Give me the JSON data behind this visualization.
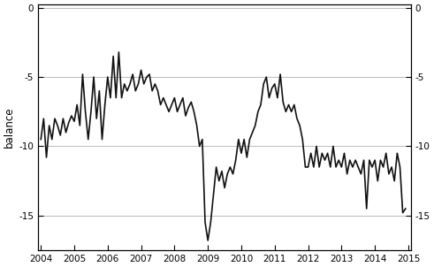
{
  "ylabel": "balance",
  "xlim_start": 2003.92,
  "xlim_end": 2015.08,
  "ylim_bottom": -17.5,
  "ylim_top": 0.25,
  "yticks": [
    0,
    -5,
    -10,
    -15
  ],
  "xticks": [
    2004,
    2005,
    2006,
    2007,
    2008,
    2009,
    2010,
    2011,
    2012,
    2013,
    2014,
    2015
  ],
  "line_color": "#111111",
  "line_width": 1.2,
  "grid_color": "#b0b0b0",
  "background_color": "#ffffff",
  "time_series": [
    [
      2004.0,
      -9.5
    ],
    [
      2004.083,
      -8.0
    ],
    [
      2004.167,
      -10.8
    ],
    [
      2004.25,
      -8.5
    ],
    [
      2004.333,
      -9.5
    ],
    [
      2004.417,
      -8.0
    ],
    [
      2004.5,
      -8.5
    ],
    [
      2004.583,
      -9.2
    ],
    [
      2004.667,
      -8.0
    ],
    [
      2004.75,
      -9.0
    ],
    [
      2004.833,
      -8.3
    ],
    [
      2004.917,
      -7.8
    ],
    [
      2005.0,
      -8.2
    ],
    [
      2005.083,
      -7.0
    ],
    [
      2005.167,
      -8.5
    ],
    [
      2005.25,
      -4.8
    ],
    [
      2005.333,
      -7.5
    ],
    [
      2005.417,
      -9.5
    ],
    [
      2005.5,
      -7.5
    ],
    [
      2005.583,
      -5.0
    ],
    [
      2005.667,
      -8.0
    ],
    [
      2005.75,
      -6.0
    ],
    [
      2005.833,
      -9.5
    ],
    [
      2005.917,
      -7.0
    ],
    [
      2006.0,
      -5.0
    ],
    [
      2006.083,
      -6.5
    ],
    [
      2006.167,
      -3.5
    ],
    [
      2006.25,
      -6.5
    ],
    [
      2006.333,
      -3.2
    ],
    [
      2006.417,
      -6.5
    ],
    [
      2006.5,
      -5.5
    ],
    [
      2006.583,
      -6.0
    ],
    [
      2006.667,
      -5.5
    ],
    [
      2006.75,
      -4.8
    ],
    [
      2006.833,
      -6.0
    ],
    [
      2006.917,
      -5.5
    ],
    [
      2007.0,
      -4.5
    ],
    [
      2007.083,
      -5.5
    ],
    [
      2007.167,
      -5.0
    ],
    [
      2007.25,
      -4.8
    ],
    [
      2007.333,
      -6.0
    ],
    [
      2007.417,
      -5.5
    ],
    [
      2007.5,
      -6.0
    ],
    [
      2007.583,
      -7.0
    ],
    [
      2007.667,
      -6.5
    ],
    [
      2007.75,
      -7.0
    ],
    [
      2007.833,
      -7.5
    ],
    [
      2007.917,
      -7.0
    ],
    [
      2008.0,
      -6.5
    ],
    [
      2008.083,
      -7.5
    ],
    [
      2008.167,
      -7.0
    ],
    [
      2008.25,
      -6.5
    ],
    [
      2008.333,
      -7.8
    ],
    [
      2008.417,
      -7.2
    ],
    [
      2008.5,
      -6.8
    ],
    [
      2008.583,
      -7.5
    ],
    [
      2008.667,
      -8.5
    ],
    [
      2008.75,
      -10.0
    ],
    [
      2008.833,
      -9.5
    ],
    [
      2008.917,
      -15.5
    ],
    [
      2009.0,
      -16.8
    ],
    [
      2009.083,
      -15.5
    ],
    [
      2009.167,
      -13.5
    ],
    [
      2009.25,
      -11.5
    ],
    [
      2009.333,
      -12.5
    ],
    [
      2009.417,
      -11.8
    ],
    [
      2009.5,
      -13.0
    ],
    [
      2009.583,
      -12.0
    ],
    [
      2009.667,
      -11.5
    ],
    [
      2009.75,
      -12.0
    ],
    [
      2009.833,
      -11.0
    ],
    [
      2009.917,
      -9.5
    ],
    [
      2010.0,
      -10.5
    ],
    [
      2010.083,
      -9.5
    ],
    [
      2010.167,
      -10.8
    ],
    [
      2010.25,
      -9.5
    ],
    [
      2010.333,
      -9.0
    ],
    [
      2010.417,
      -8.5
    ],
    [
      2010.5,
      -7.5
    ],
    [
      2010.583,
      -7.0
    ],
    [
      2010.667,
      -5.5
    ],
    [
      2010.75,
      -5.0
    ],
    [
      2010.833,
      -6.5
    ],
    [
      2010.917,
      -5.8
    ],
    [
      2011.0,
      -5.5
    ],
    [
      2011.083,
      -6.5
    ],
    [
      2011.167,
      -4.8
    ],
    [
      2011.25,
      -6.8
    ],
    [
      2011.333,
      -7.5
    ],
    [
      2011.417,
      -7.0
    ],
    [
      2011.5,
      -7.5
    ],
    [
      2011.583,
      -7.0
    ],
    [
      2011.667,
      -8.0
    ],
    [
      2011.75,
      -8.5
    ],
    [
      2011.833,
      -9.5
    ],
    [
      2011.917,
      -11.5
    ],
    [
      2012.0,
      -11.5
    ],
    [
      2012.083,
      -10.5
    ],
    [
      2012.167,
      -11.5
    ],
    [
      2012.25,
      -10.0
    ],
    [
      2012.333,
      -11.5
    ],
    [
      2012.417,
      -10.5
    ],
    [
      2012.5,
      -11.0
    ],
    [
      2012.583,
      -10.5
    ],
    [
      2012.667,
      -11.5
    ],
    [
      2012.75,
      -10.0
    ],
    [
      2012.833,
      -11.5
    ],
    [
      2012.917,
      -11.0
    ],
    [
      2013.0,
      -11.5
    ],
    [
      2013.083,
      -10.5
    ],
    [
      2013.167,
      -12.0
    ],
    [
      2013.25,
      -11.0
    ],
    [
      2013.333,
      -11.5
    ],
    [
      2013.417,
      -11.0
    ],
    [
      2013.5,
      -11.5
    ],
    [
      2013.583,
      -12.0
    ],
    [
      2013.667,
      -11.0
    ],
    [
      2013.75,
      -14.5
    ],
    [
      2013.833,
      -11.0
    ],
    [
      2013.917,
      -11.5
    ],
    [
      2014.0,
      -11.0
    ],
    [
      2014.083,
      -12.5
    ],
    [
      2014.167,
      -11.0
    ],
    [
      2014.25,
      -11.5
    ],
    [
      2014.333,
      -10.5
    ],
    [
      2014.417,
      -12.0
    ],
    [
      2014.5,
      -11.5
    ],
    [
      2014.583,
      -12.5
    ],
    [
      2014.667,
      -10.5
    ],
    [
      2014.75,
      -11.5
    ],
    [
      2014.833,
      -14.8
    ],
    [
      2014.917,
      -14.5
    ]
  ]
}
